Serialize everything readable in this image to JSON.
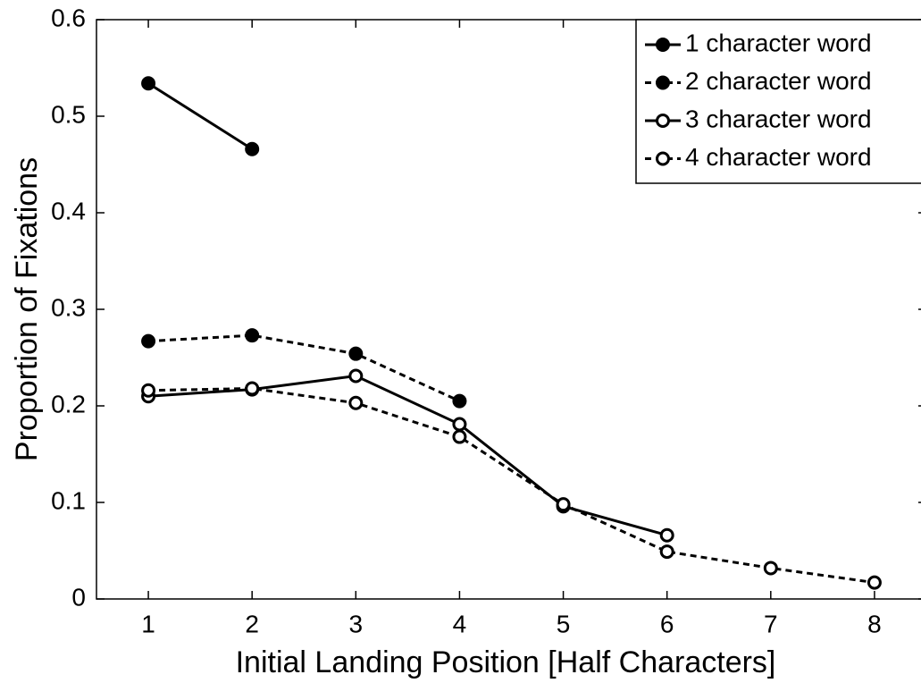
{
  "chart_data": {
    "type": "line",
    "xlabel": "Initial Landing Position [Half Characters]",
    "ylabel": "Proportion of Fixations",
    "x": [
      1,
      2,
      3,
      4,
      5,
      6,
      7,
      8
    ],
    "series": [
      {
        "name": "1 character word",
        "color": "#000000",
        "dash": false,
        "marker_fill": true,
        "values": [
          0.534,
          0.466,
          null,
          null,
          null,
          null,
          null,
          null
        ]
      },
      {
        "name": "2 character word",
        "color": "#000000",
        "dash": true,
        "marker_fill": true,
        "values": [
          0.267,
          0.273,
          0.254,
          0.205,
          null,
          null,
          null,
          null
        ]
      },
      {
        "name": "3 character word",
        "color": "#000000",
        "dash": false,
        "marker_fill": false,
        "values": [
          0.21,
          0.217,
          0.231,
          0.181,
          0.096,
          0.066,
          null,
          null
        ]
      },
      {
        "name": "4 character word",
        "color": "#000000",
        "dash": true,
        "marker_fill": false,
        "values": [
          0.216,
          0.218,
          0.203,
          0.168,
          0.098,
          0.049,
          0.032,
          0.017
        ]
      }
    ],
    "xlim": [
      0.5,
      8.5
    ],
    "xticks": [
      1,
      2,
      3,
      4,
      5,
      6,
      7,
      8
    ],
    "ylim": [
      0,
      0.6
    ],
    "yticks": [
      0,
      0.1,
      0.2,
      0.3,
      0.4,
      0.5,
      0.6
    ],
    "legend": "northeast",
    "grid": false
  }
}
